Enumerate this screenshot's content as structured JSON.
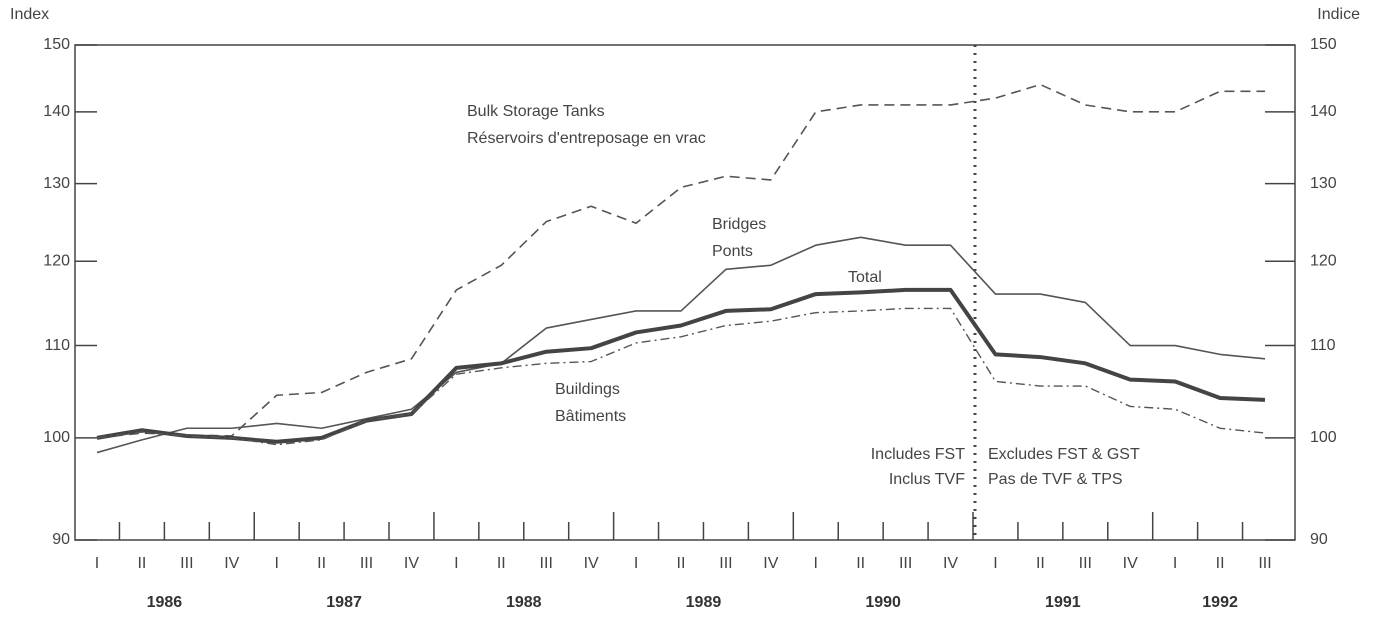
{
  "chart_data": {
    "type": "line",
    "y_label": "Index",
    "y2_label": "Indice",
    "log_scale": true,
    "categories": [
      "I",
      "II",
      "III",
      "IV",
      "I",
      "II",
      "III",
      "IV",
      "I",
      "II",
      "III",
      "IV",
      "I",
      "II",
      "III",
      "IV",
      "I",
      "II",
      "III",
      "IV",
      "I",
      "II",
      "III",
      "IV",
      "I",
      "II",
      "III"
    ],
    "years": [
      "1986",
      "1987",
      "1988",
      "1989",
      "1990",
      "1991",
      "1992"
    ],
    "ylim": [
      90,
      150
    ],
    "yticks": [
      90,
      100,
      110,
      120,
      130,
      140,
      150
    ],
    "y2lim": [
      90,
      150
    ],
    "y2ticks": [
      90,
      100,
      110,
      120,
      130,
      140,
      150
    ],
    "series": [
      {
        "name": "Bulk Storage Tanks",
        "name_fr": "Réservoirs d'entreposage en vrac",
        "color": "#555555",
        "style": "dashed",
        "width": 1.6,
        "values": [
          100,
          100.5,
          100.3,
          100.2,
          104.5,
          104.8,
          107,
          108.5,
          116.5,
          119.5,
          125,
          127,
          124.8,
          129.5,
          131,
          130.5,
          140,
          141,
          141,
          141,
          142,
          144,
          141,
          140,
          140,
          143,
          143
        ]
      },
      {
        "name": "Bridges",
        "name_fr": "Ponts",
        "color": "#555555",
        "style": "solid",
        "width": 1.6,
        "values": [
          98.5,
          99.8,
          101,
          101,
          101.5,
          101,
          102,
          103,
          107,
          108,
          112,
          113,
          114,
          114,
          119,
          119.5,
          122,
          123,
          122,
          122,
          116,
          116,
          115,
          110,
          110,
          109,
          108.5
        ]
      },
      {
        "name": "Total",
        "color": "#444444",
        "style": "solid",
        "width": 4,
        "values": [
          100,
          100.8,
          100.2,
          100,
          99.6,
          100,
          101.8,
          102.5,
          107.5,
          108,
          109.3,
          109.7,
          111.5,
          112.3,
          114,
          114.2,
          116,
          116.2,
          116.5,
          116.5,
          109,
          108.7,
          108,
          106.2,
          106,
          104.2,
          104
        ]
      },
      {
        "name": "Buildings",
        "name_fr": "Bâtiments",
        "color": "#555555",
        "style": "dash-dot",
        "width": 1.4,
        "values": [
          100,
          100.6,
          100.2,
          100,
          99.3,
          99.8,
          101.8,
          102.5,
          106.8,
          107.5,
          108,
          108.2,
          110.3,
          111,
          112.3,
          112.8,
          113.8,
          114,
          114.3,
          114.3,
          106,
          105.5,
          105.5,
          103.3,
          103,
          101,
          100.5
        ]
      }
    ],
    "annotations": {
      "before": [
        "Includes FST",
        "Inclus TVF"
      ],
      "after": [
        "Excludes FST & GST",
        "Pas de TVF & TPS"
      ]
    }
  }
}
